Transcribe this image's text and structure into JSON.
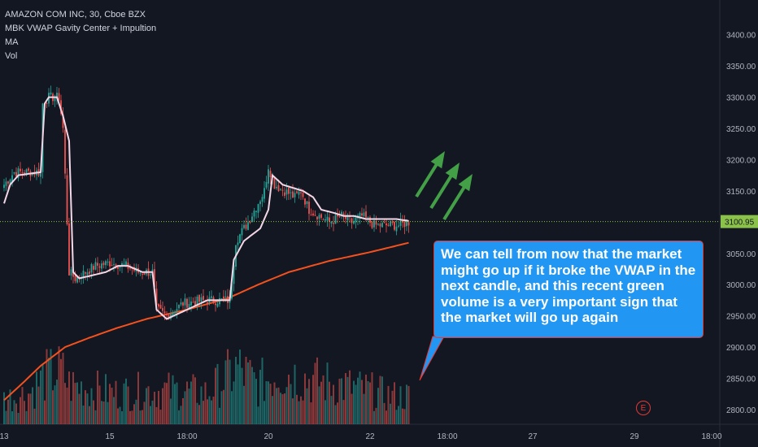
{
  "legend": {
    "symbol": "AMAZON COM INC, 30, Cboe BZX",
    "indicator": "MBK VWAP Gavity Center + Impultion",
    "ma": "MA",
    "vol": "Vol"
  },
  "callout": {
    "text": "We can tell from now that the market might go up if it broke the VWAP in the next candle, and this recent green volume is a very important sign that the market will go up again"
  },
  "earnings_marker": "E",
  "colors": {
    "background": "#131722",
    "up": "#26a69a",
    "down": "#ef5350",
    "vwap": "#f3d7e6",
    "ma": "#f4511e",
    "arrow": "#43a047",
    "callout": "#2196f3",
    "price_line": "#8bc34a"
  },
  "chart_data": {
    "type": "candlestick",
    "symbol": "AMAZON COM INC",
    "timeframe": "30",
    "exchange": "Cboe BZX",
    "last_price": 3100.95,
    "ylim": [
      2770,
      3440
    ],
    "y_ticks": [
      2800,
      2850,
      2900,
      2950,
      3000,
      3050,
      3100,
      3150,
      3200,
      3250,
      3300,
      3350,
      3400
    ],
    "y_tick_labels": [
      "2800.00",
      "2850.00",
      "2900.00",
      "2950.00",
      "3000.00",
      "3050.00",
      "3100.00",
      "3150.00",
      "3200.00",
      "3250.00",
      "3300.00",
      "3350.00",
      "3400.00"
    ],
    "last_price_label": "3100.95",
    "x_tick_labels": [
      "13",
      "15",
      "18:00",
      "20",
      "22",
      "18:00",
      "27",
      "29",
      "18:00"
    ],
    "x_tick_pos": [
      0,
      52,
      90,
      130,
      180,
      218,
      260,
      310,
      348
    ],
    "data_bars": 200,
    "total_bars": 360,
    "anchors": {
      "close": [
        [
          0,
          3160
        ],
        [
          5,
          3180
        ],
        [
          8,
          3180
        ],
        [
          18,
          3180
        ],
        [
          19,
          3290
        ],
        [
          22,
          3300
        ],
        [
          27,
          3300
        ],
        [
          29,
          3250
        ],
        [
          31,
          3100
        ],
        [
          32,
          3020
        ],
        [
          35,
          3010
        ],
        [
          45,
          3030
        ],
        [
          52,
          3035
        ],
        [
          60,
          3030
        ],
        [
          66,
          3020
        ],
        [
          73,
          3020
        ],
        [
          75,
          2960
        ],
        [
          80,
          2950
        ],
        [
          88,
          2970
        ],
        [
          100,
          2975
        ],
        [
          111,
          2975
        ],
        [
          114,
          3070
        ],
        [
          118,
          3090
        ],
        [
          120,
          3100
        ],
        [
          128,
          3150
        ],
        [
          130,
          3190
        ],
        [
          133,
          3160
        ],
        [
          138,
          3150
        ],
        [
          143,
          3140
        ],
        [
          146,
          3150
        ],
        [
          150,
          3120
        ],
        [
          155,
          3110
        ],
        [
          160,
          3100
        ],
        [
          166,
          3110
        ],
        [
          171,
          3100
        ],
        [
          176,
          3110
        ],
        [
          182,
          3095
        ],
        [
          188,
          3095
        ],
        [
          194,
          3095
        ],
        [
          199,
          3100
        ]
      ],
      "vwap": [
        [
          0,
          3130
        ],
        [
          3,
          3160
        ],
        [
          7,
          3175
        ],
        [
          18,
          3180
        ],
        [
          20,
          3290
        ],
        [
          22,
          3300
        ],
        [
          26,
          3300
        ],
        [
          29,
          3270
        ],
        [
          32,
          3230
        ],
        [
          34,
          3020
        ],
        [
          37,
          3010
        ],
        [
          50,
          3020
        ],
        [
          56,
          3030
        ],
        [
          61,
          3030
        ],
        [
          68,
          3020
        ],
        [
          73,
          3020
        ],
        [
          75,
          2960
        ],
        [
          80,
          2945
        ],
        [
          100,
          2975
        ],
        [
          111,
          2975
        ],
        [
          113,
          3040
        ],
        [
          118,
          3070
        ],
        [
          126,
          3090
        ],
        [
          130,
          3120
        ],
        [
          132,
          3175
        ],
        [
          137,
          3160
        ],
        [
          147,
          3150
        ],
        [
          152,
          3140
        ],
        [
          156,
          3120
        ],
        [
          162,
          3115
        ],
        [
          167,
          3110
        ],
        [
          172,
          3110
        ],
        [
          178,
          3105
        ],
        [
          186,
          3105
        ],
        [
          193,
          3105
        ],
        [
          199,
          3102
        ]
      ],
      "ma": [
        [
          0,
          2815
        ],
        [
          10,
          2845
        ],
        [
          18,
          2870
        ],
        [
          30,
          2900
        ],
        [
          42,
          2915
        ],
        [
          55,
          2930
        ],
        [
          70,
          2945
        ],
        [
          90,
          2960
        ],
        [
          110,
          2978
        ],
        [
          125,
          3000
        ],
        [
          140,
          3020
        ],
        [
          160,
          3038
        ],
        [
          180,
          3052
        ],
        [
          199,
          3067
        ]
      ],
      "volume": [
        [
          0,
          0.45
        ],
        [
          12,
          0.55
        ],
        [
          20,
          0.85
        ],
        [
          28,
          0.95
        ],
        [
          32,
          0.7
        ],
        [
          40,
          0.65
        ],
        [
          55,
          0.55
        ],
        [
          70,
          0.6
        ],
        [
          85,
          0.6
        ],
        [
          100,
          0.55
        ],
        [
          110,
          0.85
        ],
        [
          115,
          1.0
        ],
        [
          125,
          0.7
        ],
        [
          135,
          0.95
        ],
        [
          150,
          0.8
        ],
        [
          165,
          0.7
        ],
        [
          180,
          0.6
        ],
        [
          190,
          0.5
        ],
        [
          199,
          0.5
        ]
      ]
    },
    "arrows_count": 3
  }
}
